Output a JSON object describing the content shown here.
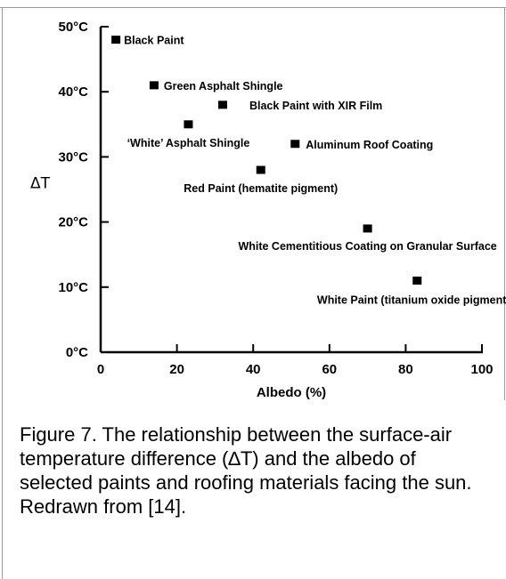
{
  "chart_data": {
    "type": "scatter",
    "title": "",
    "xlabel": "Albedo (%)",
    "ylabel": "ΔT",
    "xlim": [
      0,
      100
    ],
    "ylim": [
      0,
      50
    ],
    "x_ticks": [
      0,
      20,
      40,
      60,
      80,
      100
    ],
    "x_tick_labels": [
      "0",
      "20",
      "40",
      "60",
      "80",
      "100"
    ],
    "y_ticks": [
      0,
      10,
      20,
      30,
      40,
      50
    ],
    "y_tick_labels": [
      "0°C",
      "10°C",
      "20°C",
      "30°C",
      "40°C",
      "50°C"
    ],
    "grid": false,
    "legend": "none",
    "points": [
      {
        "label": "Black Paint",
        "x": 4,
        "y": 48
      },
      {
        "label": "Green Asphalt Shingle",
        "x": 14,
        "y": 41
      },
      {
        "label": "Black Paint with XIR Film",
        "x": 32,
        "y": 38
      },
      {
        "label": "‘White’ Asphalt Shingle",
        "x": 23,
        "y": 35
      },
      {
        "label": "Aluminum Roof Coating",
        "x": 51,
        "y": 32
      },
      {
        "label": "Red Paint (hematite pigment)",
        "x": 42,
        "y": 28
      },
      {
        "label": "White Cementitious Coating on Granular Surface",
        "x": 70,
        "y": 19
      },
      {
        "label": "White Paint (titanium oxide pigment)",
        "x": 83,
        "y": 11
      }
    ]
  },
  "caption": "Figure 7. The relationship between the surface-air temperature difference (∆T) and the albedo of selected paints and roofing materials facing the sun. Redrawn from [14]."
}
